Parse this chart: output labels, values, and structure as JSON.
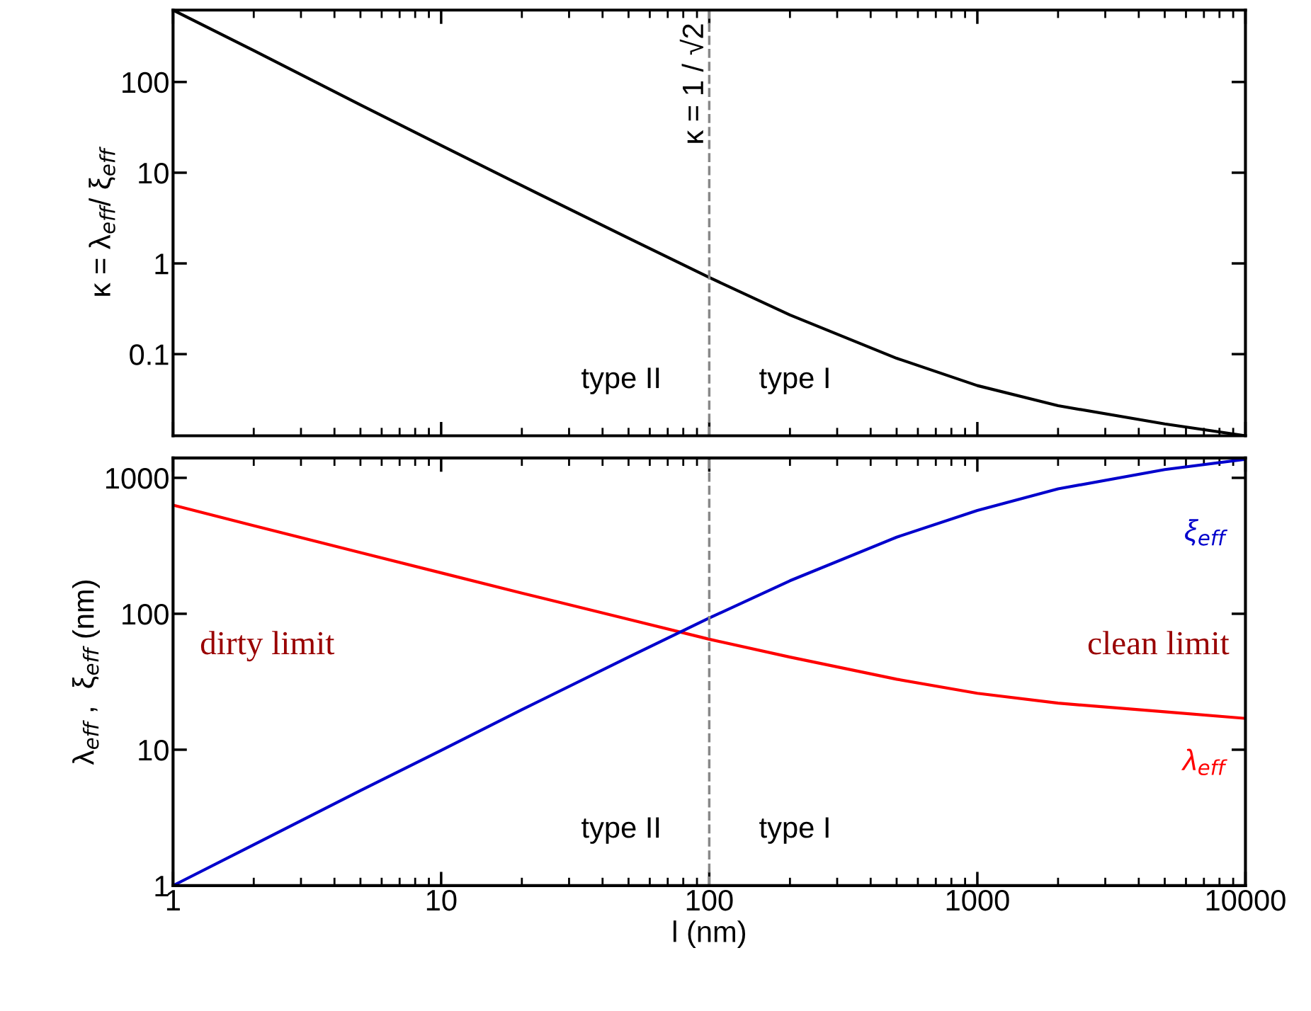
{
  "chart_data": [
    {
      "type": "line",
      "ylabel": "κ = λ$_{eff}$/ ξ$_{eff}$",
      "log": "xy",
      "xlim": [
        1,
        10000
      ],
      "ylim": [
        0.0126,
        620
      ],
      "xticks": [
        1,
        10,
        100,
        1000,
        10000
      ],
      "yticks": [
        0.1,
        1,
        10,
        100
      ],
      "tick_labels": "y",
      "grid": false,
      "legend": false,
      "x": [
        1,
        2,
        5,
        10,
        20,
        50,
        100,
        200,
        500,
        1000,
        2000,
        5000,
        10000
      ],
      "series": [
        {
          "color": "#000000",
          "values": [
            620,
            222,
            56,
            20,
            7.2,
            1.9,
            0.7,
            0.27,
            0.09,
            0.045,
            0.027,
            0.017,
            0.0126
          ]
        }
      ],
      "ref_lines": [
        {
          "axis": "x",
          "value": 100,
          "color": "#888888",
          "line_style": "dashed"
        }
      ],
      "annotations": [
        "κ = 1 / √2",
        "type II",
        "type I"
      ]
    },
    {
      "type": "line",
      "xlabel": "l (nm)",
      "ylabel": "λ$_{eff}$ ,  ξ$_{eff}$ (nm)",
      "log": "xy",
      "xlim": [
        1,
        10000
      ],
      "ylim": [
        1,
        1400
      ],
      "xticks": [
        1,
        10,
        100,
        1000,
        10000
      ],
      "yticks": [
        1,
        10,
        100,
        1000
      ],
      "grid": false,
      "legend": false,
      "x": [
        1,
        2,
        5,
        10,
        20,
        50,
        100,
        200,
        500,
        1000,
        2000,
        5000,
        10000
      ],
      "series": [
        {
          "name": "λ$_{eff}$",
          "color": "#ff0000",
          "values": [
            630,
            445,
            282,
            200,
            142,
            91,
            65,
            48,
            33,
            26,
            22,
            19,
            17
          ]
        },
        {
          "name": "ξ$_{eff}$",
          "color": "#0000cc",
          "values": [
            1.0,
            2.0,
            5.0,
            9.9,
            19.7,
            48,
            93,
            175,
            366,
            575,
            830,
            1150,
            1370
          ]
        }
      ],
      "ref_lines": [
        {
          "axis": "x",
          "value": 100,
          "color": "#888888",
          "line_style": "dashed"
        }
      ],
      "annotations": [
        "type II",
        "type I",
        "dirty limit",
        "clean limit"
      ]
    }
  ]
}
